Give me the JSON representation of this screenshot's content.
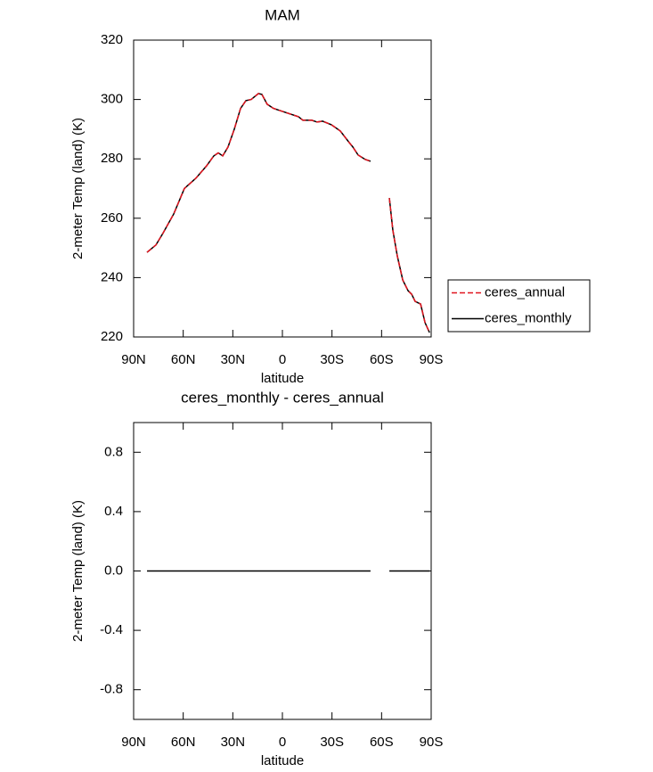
{
  "chart_data": [
    {
      "type": "line",
      "title": "MAM",
      "xlabel": "latitude",
      "ylabel": "2-meter Temp (land) (K)",
      "xlim": [
        90,
        -90
      ],
      "xticks": [
        {
          "value": 90,
          "label": "90N"
        },
        {
          "value": 60,
          "label": "60N"
        },
        {
          "value": 30,
          "label": "30N"
        },
        0,
        {
          "value": -30,
          "label": "30S"
        },
        {
          "value": -60,
          "label": "60S"
        },
        {
          "value": -90,
          "label": "90S"
        }
      ],
      "ylim": [
        220,
        320
      ],
      "yticks": [
        220,
        240,
        260,
        280,
        300,
        320
      ],
      "legend": "right",
      "x": [
        81.9,
        76.5,
        72.2,
        65.7,
        59.3,
        52.3,
        45.8,
        41.5,
        38.8,
        36.1,
        32.9,
        29.1,
        25.3,
        22.1,
        18.9,
        14.5,
        12.4,
        9.2,
        5.4,
        -1.6,
        -9.7,
        -12.4,
        -17.8,
        -21.0,
        -24.3,
        -29.6,
        -35.0,
        -40.4,
        -42.6,
        -45.8,
        -50.1,
        -53.3,
        -59,
        -64.7,
        -66.8,
        -69.5,
        -72.8,
        -76,
        -78.2,
        -80.3,
        -83.6,
        -86.3,
        -89
      ],
      "series": [
        {
          "name": "ceres_annual",
          "color": "#e0141e",
          "linestyle": "dashed",
          "values": [
            248.5,
            251,
            255,
            261.5,
            270,
            273.5,
            277.7,
            281,
            282,
            281,
            284,
            290,
            297,
            299.6,
            300,
            302,
            301.7,
            298.4,
            297,
            295.7,
            294.2,
            293,
            293,
            292.4,
            292.7,
            291.5,
            289.4,
            285.5,
            284,
            281.3,
            279.8,
            279.2,
            null,
            266.8,
            256,
            247.3,
            239.2,
            235.6,
            234.4,
            232,
            231.1,
            224.8,
            221.5
          ]
        },
        {
          "name": "ceres_monthly",
          "color": "#000000",
          "linestyle": "solid",
          "values": [
            248.5,
            251,
            255,
            261.5,
            270,
            273.5,
            277.7,
            281,
            282,
            281,
            284,
            290,
            297,
            299.6,
            300,
            302,
            301.7,
            298.4,
            297,
            295.7,
            294.2,
            293,
            293,
            292.4,
            292.7,
            291.5,
            289.4,
            285.5,
            284,
            281.3,
            279.8,
            279.2,
            null,
            266.8,
            256,
            247.3,
            239.2,
            235.6,
            234.4,
            232,
            231.1,
            224.8,
            221.5
          ]
        }
      ]
    },
    {
      "type": "line",
      "title": "ceres_monthly - ceres_annual",
      "xlabel": "latitude",
      "ylabel": "2-meter Temp (land) (K)",
      "xlim": [
        90,
        -90
      ],
      "xticks": [
        {
          "value": 90,
          "label": "90N"
        },
        {
          "value": 60,
          "label": "60N"
        },
        {
          "value": 30,
          "label": "30N"
        },
        0,
        {
          "value": -30,
          "label": "30S"
        },
        {
          "value": -60,
          "label": "60S"
        },
        {
          "value": -90,
          "label": "90S"
        }
      ],
      "ylim": [
        -1,
        1
      ],
      "yticks": [
        -0.8,
        -0.4,
        {
          "value": 0,
          "label": "0.0"
        },
        0.4,
        0.8
      ],
      "color": "#000000",
      "x": [
        81.9,
        -53.3,
        -59,
        -64.7,
        -89
      ],
      "values": [
        0,
        0,
        null,
        0,
        0
      ]
    }
  ]
}
